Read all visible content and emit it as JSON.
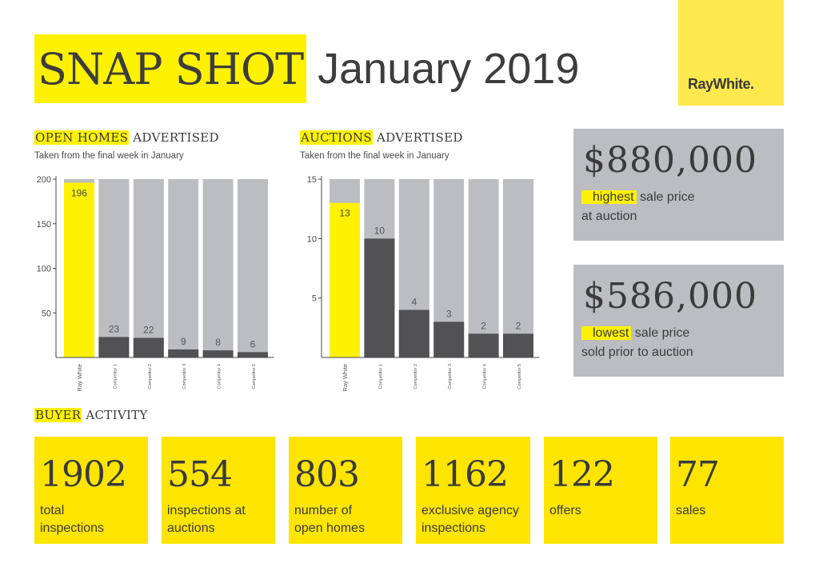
{
  "header": {
    "title_highlight": "SNAP SHOT",
    "title_rest": "January 2019",
    "logo_text": "RayWhite."
  },
  "open_homes": {
    "heading_highlight": "OPEN HOMES",
    "heading_rest": " ADVERTISED",
    "subtitle": "Taken from the final week in January"
  },
  "auctions": {
    "heading_highlight": "AUCTIONS",
    "heading_rest": " ADVERTISED",
    "subtitle": "Taken from the final week in January"
  },
  "highest": {
    "value": "$880,000",
    "highlight": "highest",
    "rest": " sale price",
    "line2": "at auction"
  },
  "lowest": {
    "value": "$586,000",
    "highlight": "lowest",
    "rest": " sale price",
    "line2": "sold prior to auction"
  },
  "buyer": {
    "heading_highlight": "BUYER",
    "heading_rest": " ACTIVITY",
    "stats": [
      {
        "value": "1902",
        "label1": "total",
        "label2": "inspections"
      },
      {
        "value": "554",
        "label1": "inspections at",
        "label2": "auctions"
      },
      {
        "value": "803",
        "label1": "number of",
        "label2": "open homes"
      },
      {
        "value": "1162",
        "label1": "exclusive agency",
        "label2": "inspections"
      },
      {
        "value": "122",
        "label1": "offers",
        "label2": ""
      },
      {
        "value": "77",
        "label1": "sales",
        "label2": ""
      }
    ]
  },
  "colors": {
    "highlight": "#fff200",
    "bar_max": "#bcbdc0",
    "bar_value": "#525254",
    "panel": "#bcbdc0",
    "stat_bg": "#fde500",
    "logo_bg": "#fde94d"
  },
  "chart_data": [
    {
      "type": "bar",
      "title": "OPEN HOMES ADVERTISED",
      "subtitle": "Taken from the final week in January",
      "categories": [
        "Ray White",
        "Competitor 1",
        "Competitor 2",
        "Competitor 3",
        "Competitor 4",
        "Competitor 5"
      ],
      "values": [
        196,
        23,
        22,
        9,
        8,
        6
      ],
      "ylim": [
        0,
        200
      ],
      "yticks": [
        50,
        100,
        150,
        200
      ],
      "highlight_index": 0,
      "grid": false
    },
    {
      "type": "bar",
      "title": "AUCTIONS ADVERTISED",
      "subtitle": "Taken from the final week in January",
      "categories": [
        "Ray White",
        "Competitor 1",
        "Competitor 2",
        "Competitor 3",
        "Competitor 4",
        "Competitor 5"
      ],
      "values": [
        13,
        10,
        4,
        3,
        2,
        2
      ],
      "ylim": [
        0,
        15
      ],
      "yticks": [
        5,
        10,
        15
      ],
      "highlight_index": 0,
      "grid": false
    }
  ]
}
